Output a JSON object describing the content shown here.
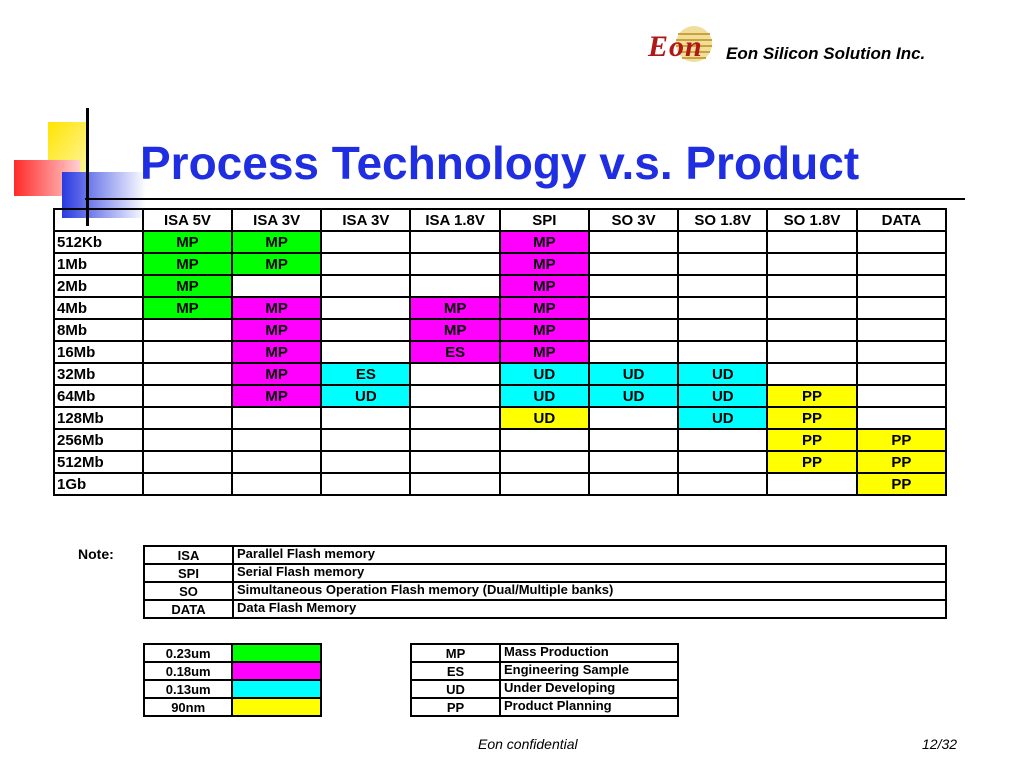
{
  "header": {
    "logo_word": "Eon",
    "company": "Eon Silicon Solution Inc."
  },
  "title": "Process Technology v.s. Product",
  "colors": {
    "title": "#1e2ee0",
    "process_0_23um": "#00ff00",
    "process_0_18um": "#ff00ff",
    "process_0_13um": "#00ffff",
    "process_90nm": "#ffff00"
  },
  "table": {
    "columns": [
      "ISA 5V",
      "ISA 3V",
      "ISA 3V",
      "ISA 1.8V",
      "SPI",
      "SO 3V",
      "SO 1.8V",
      "SO 1.8V",
      "DATA"
    ],
    "rows": [
      {
        "label": "512Kb",
        "cells": [
          {
            "t": "MP",
            "c": "g"
          },
          {
            "t": "MP",
            "c": "g"
          },
          {
            "t": "",
            "c": ""
          },
          {
            "t": "",
            "c": ""
          },
          {
            "t": "MP",
            "c": "m"
          },
          {
            "t": "",
            "c": ""
          },
          {
            "t": "",
            "c": ""
          },
          {
            "t": "",
            "c": ""
          },
          {
            "t": "",
            "c": ""
          }
        ]
      },
      {
        "label": "1Mb",
        "cells": [
          {
            "t": "MP",
            "c": "g"
          },
          {
            "t": "MP",
            "c": "g"
          },
          {
            "t": "",
            "c": ""
          },
          {
            "t": "",
            "c": ""
          },
          {
            "t": "MP",
            "c": "m"
          },
          {
            "t": "",
            "c": ""
          },
          {
            "t": "",
            "c": ""
          },
          {
            "t": "",
            "c": ""
          },
          {
            "t": "",
            "c": ""
          }
        ]
      },
      {
        "label": "2Mb",
        "cells": [
          {
            "t": "MP",
            "c": "g"
          },
          {
            "t": "",
            "c": ""
          },
          {
            "t": "",
            "c": ""
          },
          {
            "t": "",
            "c": ""
          },
          {
            "t": "MP",
            "c": "m"
          },
          {
            "t": "",
            "c": ""
          },
          {
            "t": "",
            "c": ""
          },
          {
            "t": "",
            "c": ""
          },
          {
            "t": "",
            "c": ""
          }
        ]
      },
      {
        "label": "4Mb",
        "cells": [
          {
            "t": "MP",
            "c": "g"
          },
          {
            "t": "MP",
            "c": "m"
          },
          {
            "t": "",
            "c": ""
          },
          {
            "t": "MP",
            "c": "m"
          },
          {
            "t": "MP",
            "c": "m"
          },
          {
            "t": "",
            "c": ""
          },
          {
            "t": "",
            "c": ""
          },
          {
            "t": "",
            "c": ""
          },
          {
            "t": "",
            "c": ""
          }
        ]
      },
      {
        "label": "8Mb",
        "cells": [
          {
            "t": "",
            "c": ""
          },
          {
            "t": "MP",
            "c": "m"
          },
          {
            "t": "",
            "c": ""
          },
          {
            "t": "MP",
            "c": "m"
          },
          {
            "t": "MP",
            "c": "m"
          },
          {
            "t": "",
            "c": ""
          },
          {
            "t": "",
            "c": ""
          },
          {
            "t": "",
            "c": ""
          },
          {
            "t": "",
            "c": ""
          }
        ]
      },
      {
        "label": "16Mb",
        "cells": [
          {
            "t": "",
            "c": ""
          },
          {
            "t": "MP",
            "c": "m"
          },
          {
            "t": "",
            "c": ""
          },
          {
            "t": "ES",
            "c": "m"
          },
          {
            "t": "MP",
            "c": "m"
          },
          {
            "t": "",
            "c": ""
          },
          {
            "t": "",
            "c": ""
          },
          {
            "t": "",
            "c": ""
          },
          {
            "t": "",
            "c": ""
          }
        ]
      },
      {
        "label": "32Mb",
        "cells": [
          {
            "t": "",
            "c": ""
          },
          {
            "t": "MP",
            "c": "m"
          },
          {
            "t": "ES",
            "c": "c"
          },
          {
            "t": "",
            "c": ""
          },
          {
            "t": "UD",
            "c": "c"
          },
          {
            "t": "UD",
            "c": "c"
          },
          {
            "t": "UD",
            "c": "c"
          },
          {
            "t": "",
            "c": ""
          },
          {
            "t": "",
            "c": ""
          }
        ]
      },
      {
        "label": "64Mb",
        "cells": [
          {
            "t": "",
            "c": ""
          },
          {
            "t": "MP",
            "c": "m"
          },
          {
            "t": "UD",
            "c": "c"
          },
          {
            "t": "",
            "c": ""
          },
          {
            "t": "UD",
            "c": "c"
          },
          {
            "t": "UD",
            "c": "c"
          },
          {
            "t": "UD",
            "c": "c"
          },
          {
            "t": "PP",
            "c": "y"
          },
          {
            "t": "",
            "c": ""
          }
        ]
      },
      {
        "label": "128Mb",
        "cells": [
          {
            "t": "",
            "c": ""
          },
          {
            "t": "",
            "c": ""
          },
          {
            "t": "",
            "c": ""
          },
          {
            "t": "",
            "c": ""
          },
          {
            "t": "UD",
            "c": "y"
          },
          {
            "t": "",
            "c": ""
          },
          {
            "t": "UD",
            "c": "c"
          },
          {
            "t": "PP",
            "c": "y"
          },
          {
            "t": "",
            "c": ""
          }
        ]
      },
      {
        "label": "256Mb",
        "cells": [
          {
            "t": "",
            "c": ""
          },
          {
            "t": "",
            "c": ""
          },
          {
            "t": "",
            "c": ""
          },
          {
            "t": "",
            "c": ""
          },
          {
            "t": "",
            "c": ""
          },
          {
            "t": "",
            "c": ""
          },
          {
            "t": "",
            "c": ""
          },
          {
            "t": "PP",
            "c": "y"
          },
          {
            "t": "PP",
            "c": "y"
          }
        ]
      },
      {
        "label": "512Mb",
        "cells": [
          {
            "t": "",
            "c": ""
          },
          {
            "t": "",
            "c": ""
          },
          {
            "t": "",
            "c": ""
          },
          {
            "t": "",
            "c": ""
          },
          {
            "t": "",
            "c": ""
          },
          {
            "t": "",
            "c": ""
          },
          {
            "t": "",
            "c": ""
          },
          {
            "t": "PP",
            "c": "y"
          },
          {
            "t": "PP",
            "c": "y"
          }
        ]
      },
      {
        "label": "1Gb",
        "cells": [
          {
            "t": "",
            "c": ""
          },
          {
            "t": "",
            "c": ""
          },
          {
            "t": "",
            "c": ""
          },
          {
            "t": "",
            "c": ""
          },
          {
            "t": "",
            "c": ""
          },
          {
            "t": "",
            "c": ""
          },
          {
            "t": "",
            "c": ""
          },
          {
            "t": "",
            "c": ""
          },
          {
            "t": "PP",
            "c": "y"
          }
        ]
      }
    ]
  },
  "notes": {
    "label": "Note:",
    "items": [
      {
        "code": "ISA",
        "desc": "Parallel Flash memory"
      },
      {
        "code": "SPI",
        "desc": "Serial Flash memory"
      },
      {
        "code": "SO",
        "desc": "Simultaneous Operation Flash memory (Dual/Multiple banks)"
      },
      {
        "code": "DATA",
        "desc": "Data Flash Memory"
      }
    ]
  },
  "process_legend": [
    {
      "label": "0.23um",
      "c": "g"
    },
    {
      "label": "0.18um",
      "c": "m"
    },
    {
      "label": "0.13um",
      "c": "c"
    },
    {
      "label": "90nm",
      "c": "y"
    }
  ],
  "status_legend": [
    {
      "code": "MP",
      "desc": "Mass Production"
    },
    {
      "code": "ES",
      "desc": "Engineering Sample"
    },
    {
      "code": "UD",
      "desc": "Under Developing"
    },
    {
      "code": "PP",
      "desc": "Product Planning"
    }
  ],
  "footer": {
    "confidential": "Eon confidential",
    "page": "12/32"
  }
}
